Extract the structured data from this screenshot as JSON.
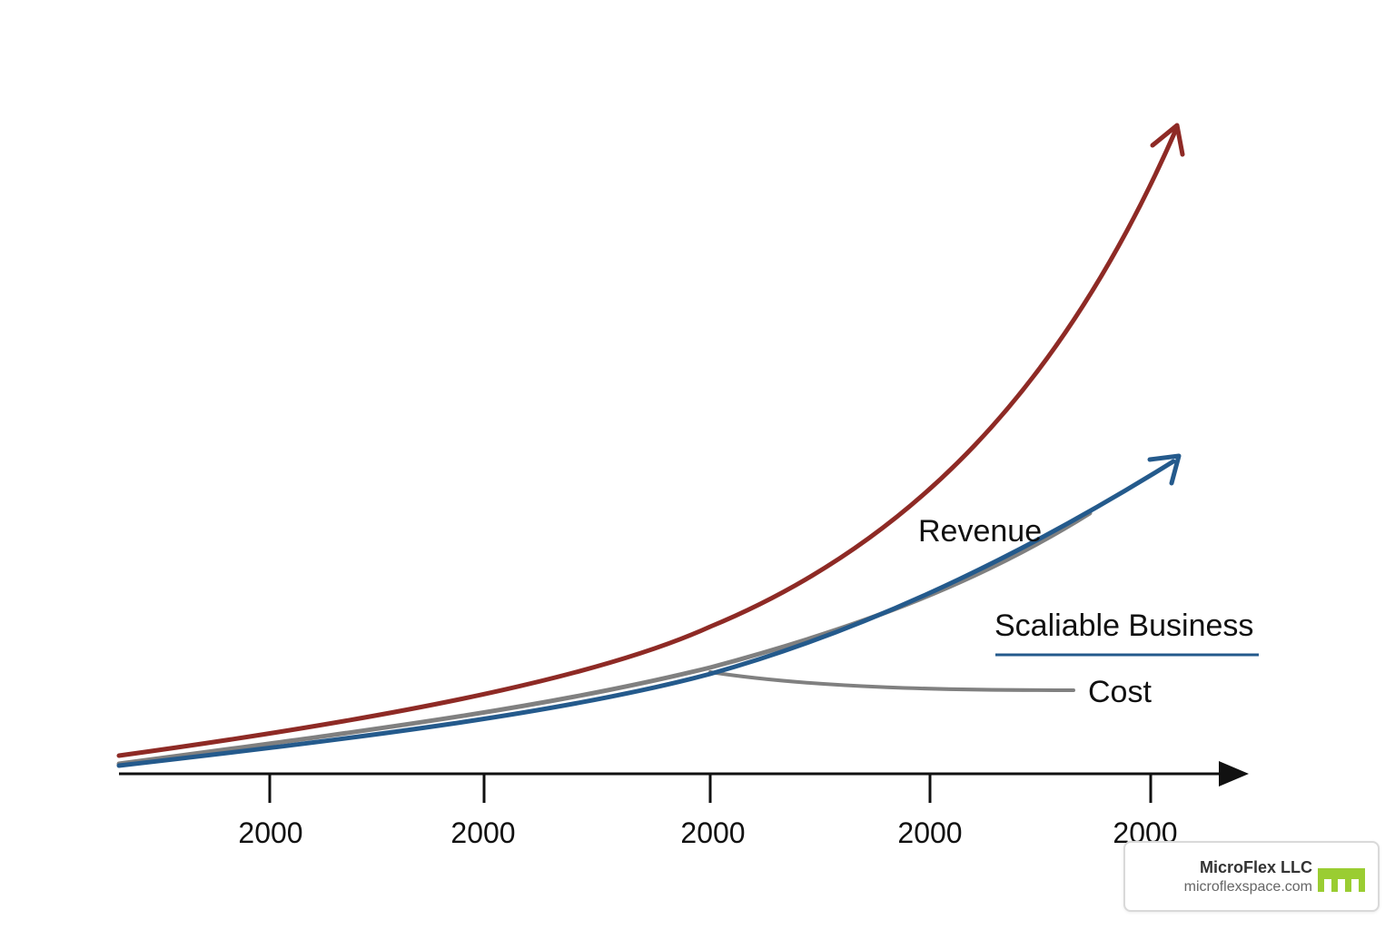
{
  "chart_data": {
    "type": "line",
    "x_ticks": [
      "2000",
      "2000",
      "2000",
      "2000",
      "2000"
    ],
    "series": [
      {
        "name": "Revenue",
        "color": "#8e2a25",
        "trend": "exponential, steepest"
      },
      {
        "name": "Scaliable Business",
        "color": "#245a8c",
        "trend": "exponential, moderate"
      },
      {
        "name": "Cost",
        "color": "#808080",
        "trend": "rises with blue line, then branches off and flattens"
      }
    ],
    "annotations": [
      "Revenue",
      "Scaliable Business",
      "Cost"
    ],
    "title": "",
    "xlabel": "",
    "ylabel": "",
    "grid": false,
    "legend": "inline labels"
  },
  "watermark": {
    "name": "MicroFlex LLC",
    "url": "microflexspace.com",
    "logo_color": "#9acd32"
  }
}
